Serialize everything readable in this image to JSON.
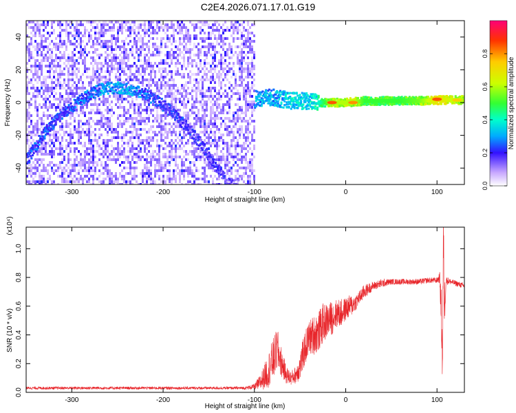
{
  "title": "C2E4.2026.071.17.01.G19",
  "colorbar": {
    "label": "Normalized spectral amplitude",
    "ticks": [
      "0.0",
      "0.2",
      "0.4",
      "0.6",
      "0.8"
    ],
    "tick_values": [
      0,
      0.2,
      0.4,
      0.6,
      0.8
    ],
    "range": [
      0,
      1
    ]
  },
  "colors": {
    "trace": "#e8262b",
    "spectrogram_base": "#7b2ff7",
    "frame": "#000000"
  },
  "chart_data": [
    {
      "type": "heatmap",
      "title": "C2E4.2026.071.17.01.G19",
      "xlabel": "Height of straight line (km)",
      "ylabel": "Frequency (Hz)",
      "xlim": [
        -350,
        130
      ],
      "ylim": [
        -50,
        50
      ],
      "xticks": [
        -300,
        -200,
        -100,
        0,
        100
      ],
      "yticks": [
        -40,
        -20,
        0,
        20,
        40
      ],
      "tick_labels_x": [
        "-300",
        "-200",
        "-100",
        "0",
        "100"
      ],
      "tick_labels_y": [
        "-40",
        "-20",
        "0",
        "20",
        "40"
      ],
      "noise_region": {
        "x_from": -350,
        "x_to": -100,
        "freq_range": [
          -50,
          50
        ],
        "amplitude": "low"
      },
      "signal_track": {
        "x": [
          -350,
          -340,
          -330,
          -320,
          -310,
          -300,
          -290,
          -280,
          -270,
          -260,
          -250,
          -240,
          -230,
          -220,
          -210,
          -200,
          -190,
          -180,
          -170,
          -160,
          -150,
          -140,
          -130,
          -120,
          -110,
          -100,
          -90,
          -80,
          -70,
          -60,
          -50,
          -40,
          -30,
          -20,
          -10,
          0,
          10,
          20,
          40,
          60,
          80,
          100,
          120,
          130
        ],
        "freq": [
          -35,
          -26,
          -18,
          -12,
          -6,
          -2,
          2,
          5,
          8,
          9,
          9,
          8,
          7,
          5,
          2,
          -2,
          -6,
          -12,
          -18,
          -25,
          -33,
          -41,
          -50,
          -50,
          -50,
          2,
          3,
          3,
          2,
          1,
          1,
          0.5,
          0,
          0,
          0,
          0,
          0.5,
          1,
          1,
          1,
          1,
          1.5,
          1.5,
          1.5
        ],
        "amplitude": [
          0.22,
          0.22,
          0.22,
          0.22,
          0.22,
          0.25,
          0.25,
          0.25,
          0.28,
          0.3,
          0.3,
          0.3,
          0.28,
          0.25,
          0.22,
          0.2,
          0.2,
          0.2,
          0.18,
          0.18,
          0.18,
          0.18,
          0.15,
          0.15,
          0.15,
          0.3,
          0.3,
          0.3,
          0.32,
          0.35,
          0.35,
          0.35,
          0.4,
          0.55,
          0.6,
          0.6,
          0.6,
          0.5,
          0.5,
          0.5,
          0.55,
          0.7,
          0.6,
          0.6
        ]
      },
      "peaks": [
        {
          "x": -15,
          "freq": 0,
          "amplitude": 0.85
        },
        {
          "x": 8,
          "freq": 0,
          "amplitude": 0.8
        },
        {
          "x": 100,
          "freq": 2,
          "amplitude": 0.85
        },
        {
          "x": 122,
          "freq": 1.5,
          "amplitude": 0.75
        }
      ]
    },
    {
      "type": "line",
      "xlabel": "Height of straight line (km)",
      "ylabel": "SNR (10 * v/v)",
      "y_multiplier": "(x10⁴)",
      "xlim": [
        -350,
        130
      ],
      "ylim": [
        0,
        1.15
      ],
      "xticks": [
        -300,
        -200,
        -100,
        0,
        100
      ],
      "yticks": [
        0.0,
        0.2,
        0.4,
        0.6,
        0.8,
        1.0
      ],
      "tick_labels_x": [
        "-300",
        "-200",
        "-100",
        "0",
        "100"
      ],
      "tick_labels_y": [
        "0.0",
        "0.2",
        "0.4",
        "0.6",
        "0.8",
        "1.0"
      ],
      "series": [
        {
          "x": [
            -350,
            -300,
            -250,
            -200,
            -150,
            -110,
            -100,
            -95,
            -90,
            -85,
            -80,
            -75,
            -70,
            -65,
            -60,
            -55,
            -50,
            -45,
            -40,
            -35,
            -30,
            -25,
            -20,
            -15,
            -10,
            -5,
            0,
            5,
            10,
            15,
            20,
            30,
            40,
            50,
            60,
            70,
            80,
            90,
            100,
            103,
            105,
            106,
            107,
            108,
            110,
            115,
            120,
            125,
            130
          ],
          "y": [
            0.03,
            0.03,
            0.03,
            0.03,
            0.03,
            0.03,
            0.04,
            0.06,
            0.1,
            0.15,
            0.22,
            0.3,
            0.2,
            0.12,
            0.1,
            0.12,
            0.18,
            0.3,
            0.38,
            0.4,
            0.42,
            0.48,
            0.5,
            0.52,
            0.55,
            0.55,
            0.58,
            0.6,
            0.62,
            0.66,
            0.7,
            0.74,
            0.76,
            0.77,
            0.77,
            0.77,
            0.77,
            0.78,
            0.78,
            0.8,
            0.5,
            0.2,
            1.1,
            0.6,
            0.78,
            0.77,
            0.76,
            0.75,
            0.74
          ],
          "spread": [
            0.01,
            0.01,
            0.01,
            0.01,
            0.01,
            0.01,
            0.02,
            0.05,
            0.08,
            0.12,
            0.15,
            0.15,
            0.1,
            0.06,
            0.05,
            0.06,
            0.1,
            0.12,
            0.12,
            0.14,
            0.14,
            0.14,
            0.12,
            0.12,
            0.1,
            0.1,
            0.08,
            0.08,
            0.06,
            0.05,
            0.05,
            0.03,
            0.03,
            0.02,
            0.02,
            0.02,
            0.02,
            0.02,
            0.02,
            0.04,
            0.2,
            0.2,
            0.2,
            0.2,
            0.03,
            0.02,
            0.02,
            0.02,
            0.02
          ]
        }
      ]
    }
  ]
}
